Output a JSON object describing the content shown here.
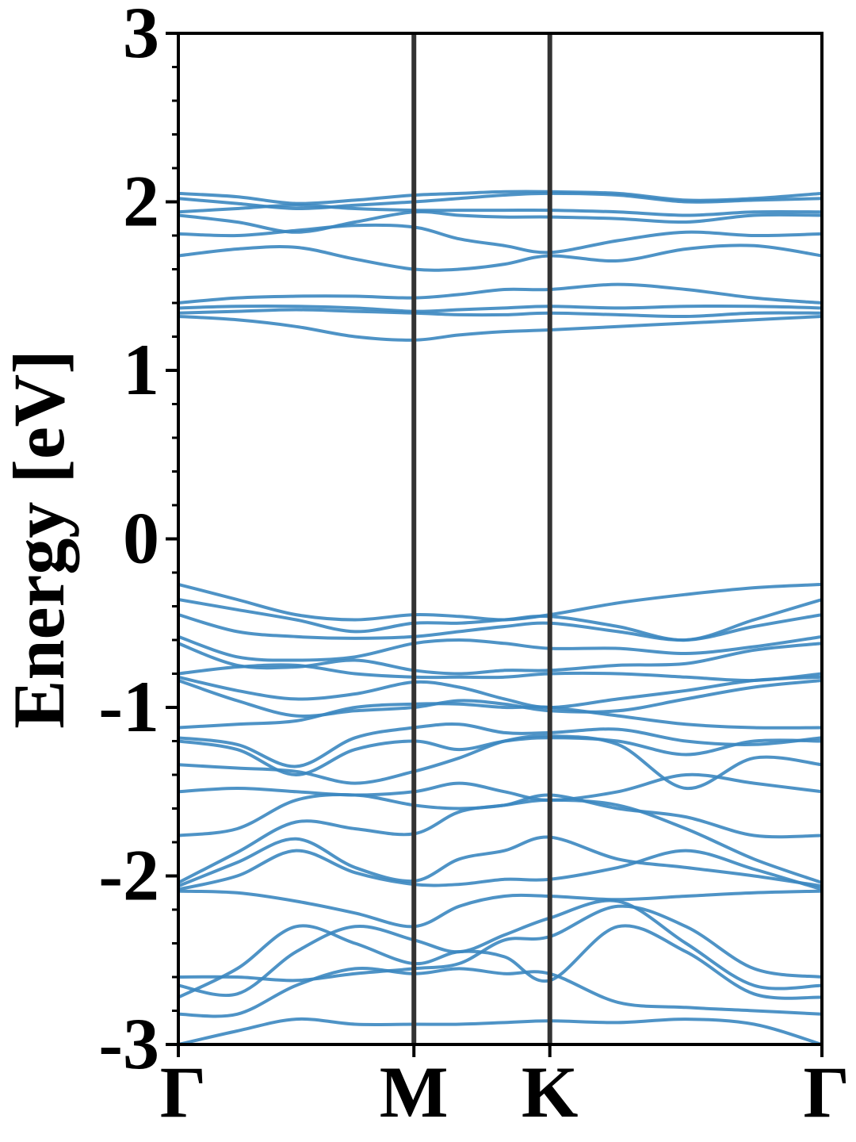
{
  "chart_data": {
    "type": "line",
    "title": "",
    "xlabel": "",
    "ylabel": "Energy [eV]",
    "ylim": [
      -3,
      3
    ],
    "grid": false,
    "legend": "none",
    "line_color": "#3b87c0",
    "divider_color": "#333333",
    "x_ticks": [
      {
        "label": "Γ",
        "k": 0
      },
      {
        "label": "M",
        "k": 1
      },
      {
        "label": "K",
        "k": 1.577
      },
      {
        "label": "Γ",
        "k": 2.732
      }
    ],
    "y_ticks": [
      {
        "label": "3",
        "value": 3
      },
      {
        "label": "2",
        "value": 2
      },
      {
        "label": "1",
        "value": 1
      },
      {
        "label": "0",
        "value": 0
      },
      {
        "label": "-1",
        "value": -1
      },
      {
        "label": "-2",
        "value": -2
      },
      {
        "label": "-3",
        "value": -3
      }
    ],
    "high_symmetry_lines": [
      1,
      1.577
    ],
    "band_k": [
      0,
      0.25,
      0.5,
      0.75,
      1,
      1.192,
      1.385,
      1.577,
      1.866,
      2.155,
      2.444,
      2.732
    ],
    "bands": [
      [
        2.05,
        2.03,
        1.99,
        2.01,
        2.04,
        2.05,
        2.06,
        2.06,
        2.05,
        2.01,
        2.02,
        2.05
      ],
      [
        2.02,
        1.99,
        1.96,
        1.98,
        2.0,
        2.02,
        2.04,
        2.05,
        2.04,
        2.0,
        2.01,
        2.02
      ],
      [
        1.94,
        1.96,
        1.98,
        1.96,
        1.95,
        1.95,
        1.95,
        1.95,
        1.94,
        1.92,
        1.94,
        1.94
      ],
      [
        1.92,
        1.88,
        1.82,
        1.88,
        1.94,
        1.92,
        1.91,
        1.91,
        1.9,
        1.88,
        1.92,
        1.92
      ],
      [
        1.81,
        1.8,
        1.83,
        1.86,
        1.85,
        1.78,
        1.74,
        1.7,
        1.77,
        1.82,
        1.8,
        1.81
      ],
      [
        1.68,
        1.72,
        1.73,
        1.66,
        1.6,
        1.6,
        1.63,
        1.68,
        1.65,
        1.72,
        1.74,
        1.68
      ],
      [
        1.4,
        1.43,
        1.44,
        1.44,
        1.43,
        1.45,
        1.48,
        1.48,
        1.51,
        1.48,
        1.43,
        1.4
      ],
      [
        1.37,
        1.38,
        1.38,
        1.37,
        1.35,
        1.36,
        1.37,
        1.38,
        1.37,
        1.38,
        1.38,
        1.37
      ],
      [
        1.34,
        1.35,
        1.36,
        1.35,
        1.34,
        1.33,
        1.33,
        1.34,
        1.33,
        1.32,
        1.34,
        1.34
      ],
      [
        1.32,
        1.3,
        1.26,
        1.2,
        1.18,
        1.21,
        1.23,
        1.24,
        1.26,
        1.28,
        1.3,
        1.32
      ],
      [
        -0.27,
        -0.36,
        -0.45,
        -0.48,
        -0.45,
        -0.46,
        -0.48,
        -0.45,
        -0.38,
        -0.33,
        -0.29,
        -0.27
      ],
      [
        -0.36,
        -0.42,
        -0.48,
        -0.55,
        -0.5,
        -0.5,
        -0.48,
        -0.46,
        -0.52,
        -0.6,
        -0.48,
        -0.36
      ],
      [
        -0.45,
        -0.55,
        -0.58,
        -0.59,
        -0.58,
        -0.55,
        -0.52,
        -0.5,
        -0.55,
        -0.6,
        -0.52,
        -0.45
      ],
      [
        -0.58,
        -0.7,
        -0.72,
        -0.7,
        -0.62,
        -0.6,
        -0.62,
        -0.65,
        -0.65,
        -0.68,
        -0.64,
        -0.58
      ],
      [
        -0.62,
        -0.75,
        -0.76,
        -0.72,
        -0.78,
        -0.8,
        -0.78,
        -0.78,
        -0.75,
        -0.74,
        -0.66,
        -0.62
      ],
      [
        -0.8,
        -0.76,
        -0.75,
        -0.8,
        -0.82,
        -0.82,
        -0.82,
        -0.8,
        -0.8,
        -0.82,
        -0.84,
        -0.8
      ],
      [
        -0.82,
        -0.9,
        -0.95,
        -0.92,
        -0.85,
        -0.88,
        -0.95,
        -1.0,
        -0.95,
        -0.9,
        -0.84,
        -0.82
      ],
      [
        -0.84,
        -0.96,
        -1.05,
        -1.02,
        -1.0,
        -0.96,
        -0.98,
        -1.02,
        -1.02,
        -0.95,
        -0.88,
        -0.84
      ],
      [
        -1.12,
        -1.1,
        -1.08,
        -1.0,
        -0.98,
        -0.98,
        -1.0,
        -1.0,
        -1.05,
        -1.1,
        -1.12,
        -1.12
      ],
      [
        -1.18,
        -1.22,
        -1.35,
        -1.18,
        -1.12,
        -1.1,
        -1.15,
        -1.15,
        -1.13,
        -1.2,
        -1.22,
        -1.18
      ],
      [
        -1.2,
        -1.25,
        -1.4,
        -1.25,
        -1.2,
        -1.25,
        -1.2,
        -1.18,
        -1.2,
        -1.28,
        -1.2,
        -1.2
      ],
      [
        -1.34,
        -1.36,
        -1.38,
        -1.45,
        -1.38,
        -1.3,
        -1.2,
        -1.17,
        -1.22,
        -1.48,
        -1.3,
        -1.34
      ],
      [
        -1.5,
        -1.48,
        -1.5,
        -1.52,
        -1.5,
        -1.45,
        -1.5,
        -1.55,
        -1.5,
        -1.4,
        -1.45,
        -1.5
      ],
      [
        -1.76,
        -1.72,
        -1.55,
        -1.52,
        -1.58,
        -1.6,
        -1.58,
        -1.52,
        -1.6,
        -1.65,
        -1.76,
        -1.76
      ],
      [
        -2.04,
        -1.86,
        -1.68,
        -1.72,
        -1.75,
        -1.62,
        -1.58,
        -1.55,
        -1.58,
        -1.72,
        -1.9,
        -2.04
      ],
      [
        -2.06,
        -1.92,
        -1.78,
        -1.95,
        -2.03,
        -1.9,
        -1.85,
        -1.77,
        -1.9,
        -1.95,
        -2.0,
        -2.06
      ],
      [
        -2.08,
        -2.0,
        -1.85,
        -1.98,
        -2.05,
        -2.05,
        -2.02,
        -2.02,
        -1.95,
        -1.85,
        -1.96,
        -2.08
      ],
      [
        -2.09,
        -2.1,
        -2.15,
        -2.22,
        -2.3,
        -2.18,
        -2.12,
        -2.12,
        -2.14,
        -2.12,
        -2.1,
        -2.09
      ],
      [
        -2.6,
        -2.6,
        -2.62,
        -2.58,
        -2.55,
        -2.52,
        -2.38,
        -2.36,
        -2.18,
        -2.3,
        -2.55,
        -2.6
      ],
      [
        -2.65,
        -2.7,
        -2.45,
        -2.3,
        -2.38,
        -2.45,
        -2.35,
        -2.25,
        -2.15,
        -2.4,
        -2.65,
        -2.65
      ],
      [
        -2.72,
        -2.55,
        -2.3,
        -2.4,
        -2.52,
        -2.45,
        -2.48,
        -2.62,
        -2.3,
        -2.45,
        -2.7,
        -2.72
      ],
      [
        -2.82,
        -2.82,
        -2.65,
        -2.55,
        -2.58,
        -2.55,
        -2.58,
        -2.58,
        -2.75,
        -2.78,
        -2.8,
        -2.82
      ],
      [
        -3.0,
        -2.92,
        -2.85,
        -2.88,
        -2.88,
        -2.88,
        -2.87,
        -2.86,
        -2.87,
        -2.85,
        -2.88,
        -3.0
      ]
    ]
  }
}
